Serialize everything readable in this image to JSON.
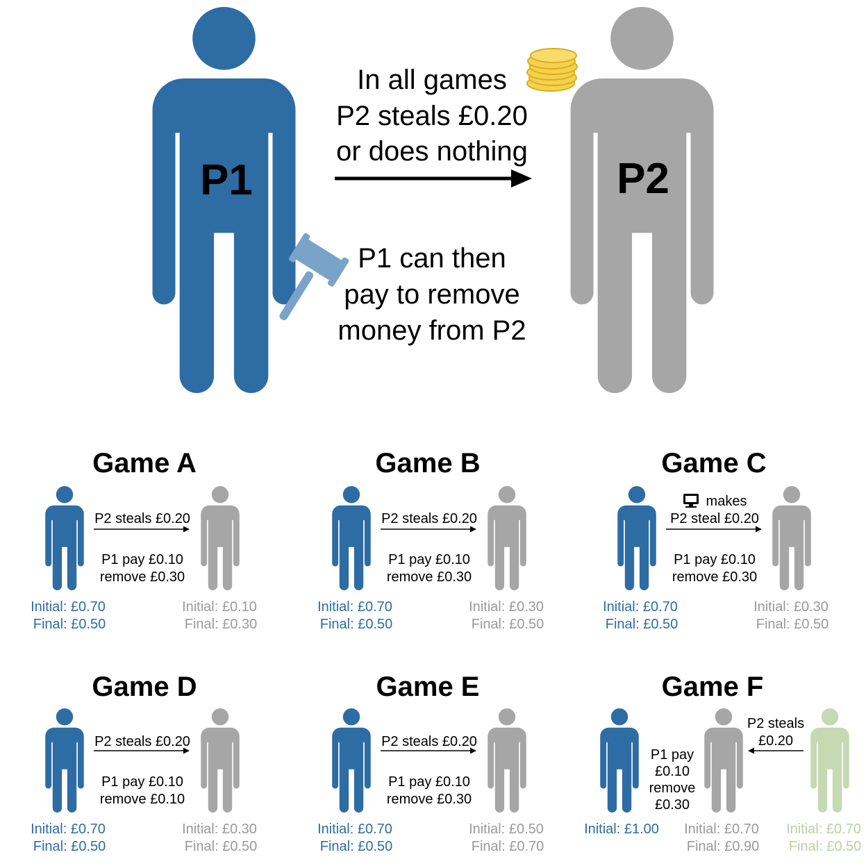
{
  "colors": {
    "p1": "#2e6ca4",
    "p2": "#a6a6a6",
    "p3": "#c5d9b3",
    "p3_text": "#b8d3a3",
    "p2_text": "#9a9a9a",
    "gavel": "#7aa3c9",
    "coin": "#f5d24e",
    "coin_edge": "#d9ad22",
    "text": "#000000"
  },
  "hero": {
    "p1_label": "P1",
    "p2_label": "P2",
    "steal_text": [
      "In all games",
      "P2 steals £0.20",
      "or does nothing"
    ],
    "punish_text": [
      "P1 can then",
      "pay to remove",
      "money from P2"
    ],
    "coin_icon": "coin-stack-icon",
    "gavel_icon": "gavel-icon"
  },
  "games": [
    {
      "title": "Game A",
      "steal": [
        "P2 steals £0.20"
      ],
      "punish": [
        "P1 pay £0.10",
        "remove £0.30"
      ],
      "p1_initial": "Initial: £0.70",
      "p1_final": "Final: £0.50",
      "p2_initial": "Initial: £0.10",
      "p2_final": "Final: £0.30"
    },
    {
      "title": "Game B",
      "steal": [
        "P2 steals £0.20"
      ],
      "punish": [
        "P1 pay £0.10",
        "remove £0.30"
      ],
      "p1_initial": "Initial: £0.70",
      "p1_final": "Final: £0.50",
      "p2_initial": "Initial: £0.30",
      "p2_final": "Final: £0.50"
    },
    {
      "title": "Game C",
      "computer_icon": "computer-icon",
      "steal": [
        "makes",
        "P2 steal £0.20"
      ],
      "punish": [
        "P1 pay £0.10",
        "remove £0.30"
      ],
      "p1_initial": "Initial: £0.70",
      "p1_final": "Final: £0.50",
      "p2_initial": "Initial: £0.30",
      "p2_final": "Final: £0.50"
    },
    {
      "title": "Game D",
      "steal": [
        "P2 steals £0.20"
      ],
      "punish": [
        "P1 pay £0.10",
        "remove £0.10"
      ],
      "p1_initial": "Initial: £0.70",
      "p1_final": "Final: £0.50",
      "p2_initial": "Initial: £0.30",
      "p2_final": "Final: £0.50"
    },
    {
      "title": "Game E",
      "steal": [
        "P2 steals £0.20"
      ],
      "punish": [
        "P1 pay £0.10",
        "remove £0.30"
      ],
      "p1_initial": "Initial: £0.70",
      "p1_final": "Final: £0.50",
      "p2_initial": "Initial: £0.50",
      "p2_final": "Final: £0.70"
    },
    {
      "title": "Game F",
      "steal": [
        "P2 steals",
        "£0.20"
      ],
      "punish": [
        "P1 pay",
        "£0.10",
        "remove",
        "£0.30"
      ],
      "p1_initial": "Initial: £1.00",
      "p2_initial": "Initial: £0.70",
      "p2_final": "Final: £0.90",
      "p3_initial": "Initial: £0.70",
      "p3_final": "Final: £0.50"
    }
  ]
}
